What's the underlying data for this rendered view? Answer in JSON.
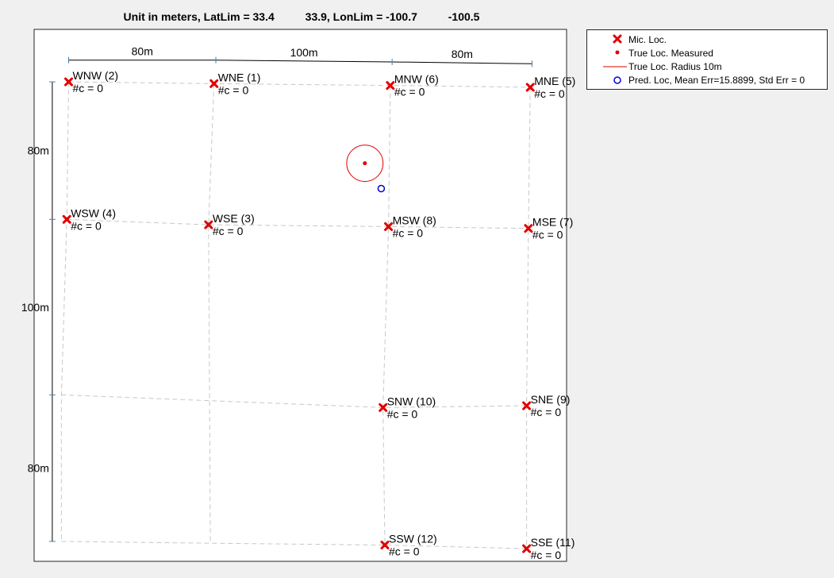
{
  "chart_data": {
    "type": "scatter",
    "title": "Unit in meters, LatLim = 33.4          33.9, LonLim = -100.7          -100.5",
    "xlabel": "",
    "ylabel": "",
    "grid": false,
    "legend_placement": "outside top-right",
    "colors": {
      "mic": "#e00000",
      "true_loc": "#e00000",
      "pred": "#0000e0",
      "grid_line": "#c8c8c8",
      "dimension": "#000000",
      "dimension_tick": "#4a7fa8"
    },
    "microphones": [
      {
        "name": "WNW (2)",
        "count_label": "#c = 0",
        "x": 5,
        "y": 250
      },
      {
        "name": "WNE (1)",
        "count_label": "#c = 0",
        "x": 85,
        "y": 249
      },
      {
        "name": "MNW (6)",
        "count_label": "#c = 0",
        "x": 182,
        "y": 248
      },
      {
        "name": "MNE (5)",
        "count_label": "#c = 0",
        "x": 259,
        "y": 247
      },
      {
        "name": "WSW (4)",
        "count_label": "#c = 0",
        "x": 4,
        "y": 174
      },
      {
        "name": "WSE (3)",
        "count_label": "#c = 0",
        "x": 82,
        "y": 171
      },
      {
        "name": "MSW (8)",
        "count_label": "#c = 0",
        "x": 181,
        "y": 170
      },
      {
        "name": "MSE (7)",
        "count_label": "#c = 0",
        "x": 258,
        "y": 169
      },
      {
        "name": "SNW (10)",
        "count_label": "#c = 0",
        "x": 178,
        "y": 70
      },
      {
        "name": "SNE (9)",
        "count_label": "#c = 0",
        "x": 257,
        "y": 71
      },
      {
        "name": "SSW (12)",
        "count_label": "#c = 0",
        "x": 179,
        "y": -6
      },
      {
        "name": "SSE (11)",
        "count_label": "#c = 0",
        "x": 257,
        "y": -8
      }
    ],
    "grid_lines": [
      [
        [
          5,
          250
        ],
        [
          85,
          249
        ],
        [
          182,
          248
        ],
        [
          259,
          247
        ]
      ],
      [
        [
          4,
          174
        ],
        [
          82,
          171
        ],
        [
          181,
          170
        ],
        [
          258,
          169
        ]
      ],
      [
        [
          1,
          77
        ],
        [
          178,
          70
        ],
        [
          257,
          71
        ]
      ],
      [
        [
          1,
          -4
        ],
        [
          83,
          -5
        ],
        [
          179,
          -6
        ],
        [
          257,
          -8
        ]
      ],
      [
        [
          5,
          250
        ],
        [
          4,
          174
        ],
        [
          1,
          77
        ],
        [
          1,
          -4
        ]
      ],
      [
        [
          85,
          249
        ],
        [
          82,
          171
        ],
        [
          83,
          -5
        ]
      ],
      [
        [
          182,
          248
        ],
        [
          181,
          170
        ],
        [
          178,
          70
        ],
        [
          179,
          -6
        ]
      ],
      [
        [
          259,
          247
        ],
        [
          258,
          169
        ],
        [
          257,
          71
        ],
        [
          257,
          -8
        ]
      ]
    ],
    "true_location": {
      "x": 168,
      "y": 205,
      "radius": 10
    },
    "predicted_location": {
      "x": 177,
      "y": 191
    },
    "dimension_top": {
      "ticks": [
        [
          5,
          262
        ],
        [
          86,
          262
        ],
        [
          183,
          261
        ],
        [
          260,
          260
        ]
      ],
      "labels": [
        "80m",
        "100m",
        "80m"
      ]
    },
    "dimension_left": {
      "ticks": [
        [
          -4,
          250
        ],
        [
          -4,
          174
        ],
        [
          -4,
          77
        ],
        [
          -4,
          -4
        ]
      ],
      "labels": [
        "80m",
        "100m",
        "80m"
      ]
    },
    "xlim": [
      -14,
      279
    ],
    "ylim": [
      -15,
      279
    ],
    "legend": [
      {
        "label": "Mic. Loc.",
        "marker": "x"
      },
      {
        "label": "True Loc. Measured",
        "marker": "dot"
      },
      {
        "label": "True Loc. Radius 10m",
        "marker": "line"
      },
      {
        "label": "Pred. Loc, Mean Err=15.8899, Std Err = 0",
        "marker": "circle"
      }
    ]
  }
}
